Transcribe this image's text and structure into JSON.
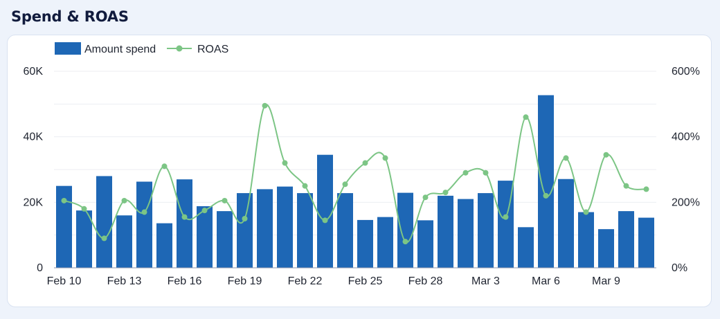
{
  "title": "Spend & ROAS",
  "colors": {
    "bar": "#1e67b5",
    "line": "#7cc585",
    "grid": "#eceef2",
    "axis": "#8a94ad"
  },
  "legend": {
    "bar_label": "Amount spend",
    "line_label": "ROAS"
  },
  "chart_data": {
    "type": "bar",
    "categories": [
      "Feb 10",
      "Feb 11",
      "Feb 12",
      "Feb 13",
      "Feb 14",
      "Feb 15",
      "Feb 16",
      "Feb 17",
      "Feb 18",
      "Feb 19",
      "Feb 20",
      "Feb 21",
      "Feb 22",
      "Feb 23",
      "Feb 24",
      "Feb 25",
      "Feb 26",
      "Feb 27",
      "Feb 28",
      "Mar 1",
      "Mar 2",
      "Mar 3",
      "Mar 4",
      "Mar 5",
      "Mar 6",
      "Mar 7",
      "Mar 8",
      "Mar 9",
      "Mar 10",
      "Mar 11"
    ],
    "x_tick_labels": [
      "Feb 10",
      "Feb 13",
      "Feb 16",
      "Feb 19",
      "Feb 22",
      "Feb 25",
      "Feb 28",
      "Mar 3",
      "Mar 6",
      "Mar 9"
    ],
    "series": [
      {
        "name": "Amount spend",
        "type": "bar",
        "axis": "left",
        "values": [
          25000,
          17500,
          28000,
          16000,
          26300,
          13600,
          27000,
          18800,
          17300,
          22800,
          24000,
          24800,
          22800,
          34500,
          22800,
          14600,
          15500,
          22900,
          14500,
          22000,
          21000,
          22800,
          26600,
          12400,
          52700,
          27100,
          17000,
          11800,
          17300,
          15300
        ]
      },
      {
        "name": "ROAS",
        "type": "line",
        "axis": "right",
        "values": [
          205,
          180,
          90,
          205,
          170,
          310,
          155,
          175,
          205,
          150,
          495,
          320,
          250,
          145,
          255,
          320,
          335,
          80,
          215,
          230,
          290,
          290,
          155,
          460,
          220,
          335,
          170,
          345,
          250,
          240
        ]
      }
    ],
    "y_left": {
      "ticks": [
        "0",
        "20K",
        "40K",
        "60K"
      ],
      "lim": [
        0,
        60000
      ]
    },
    "y_right": {
      "ticks": [
        "0%",
        "200%",
        "400%",
        "600%"
      ],
      "lim": [
        0,
        600
      ]
    },
    "grid": true,
    "legend_position": "top-left"
  }
}
